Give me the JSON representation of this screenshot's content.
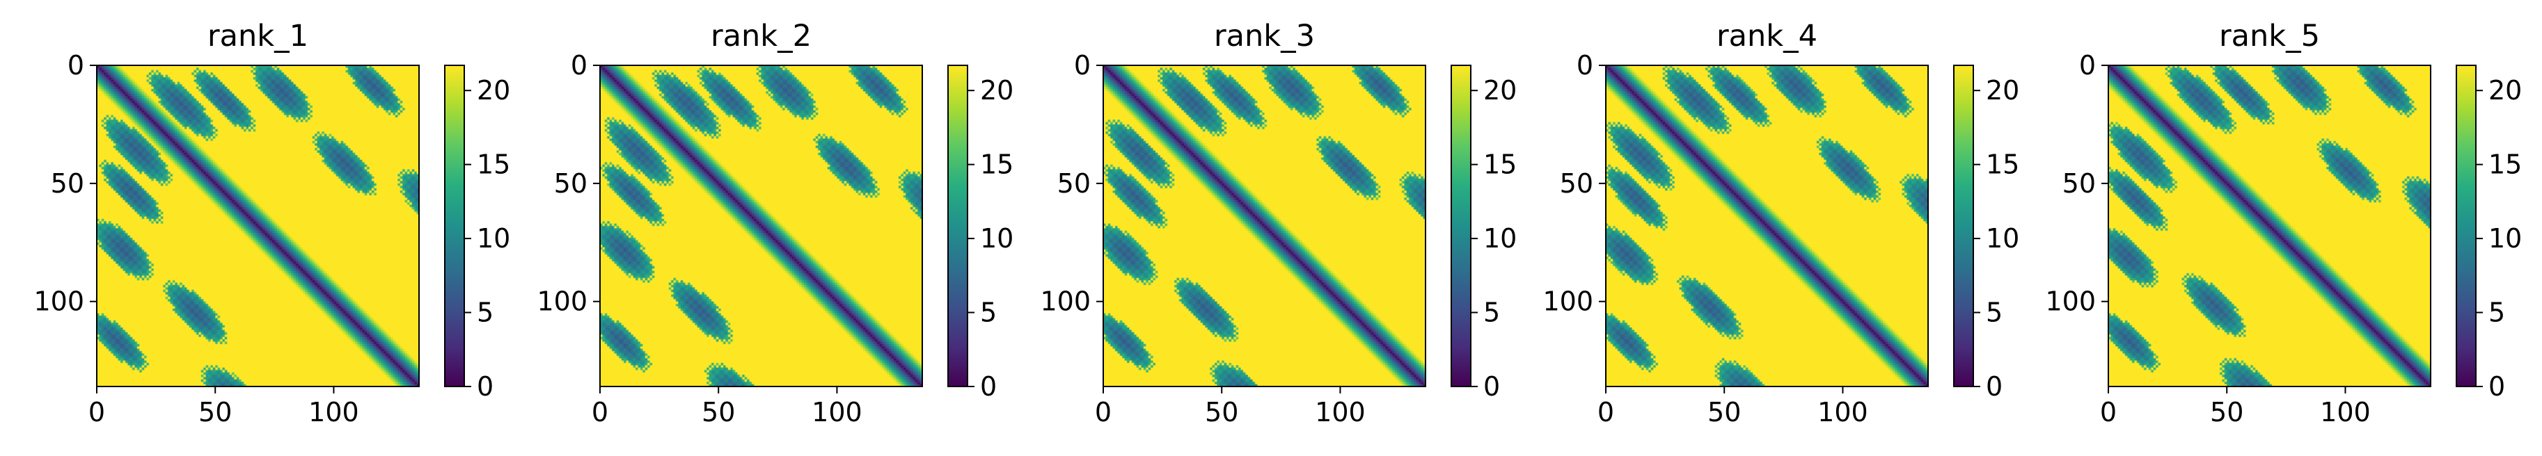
{
  "chart_data": [
    {
      "type": "heatmap",
      "title": "rank_1",
      "xlim": [
        0,
        136
      ],
      "ylim": [
        136,
        0
      ],
      "xticks": [
        "0",
        "50",
        "100"
      ],
      "yticks": [
        "0",
        "50",
        "100"
      ],
      "colorbar": {
        "range": [
          0,
          21.7
        ],
        "ticks": [
          "0",
          "5",
          "10",
          "15",
          "20"
        ],
        "colormap": "viridis"
      }
    },
    {
      "type": "heatmap",
      "title": "rank_2",
      "xlim": [
        0,
        136
      ],
      "ylim": [
        136,
        0
      ],
      "xticks": [
        "0",
        "50",
        "100"
      ],
      "yticks": [
        "0",
        "50",
        "100"
      ],
      "colorbar": {
        "range": [
          0,
          21.7
        ],
        "ticks": [
          "0",
          "5",
          "10",
          "15",
          "20"
        ],
        "colormap": "viridis"
      }
    },
    {
      "type": "heatmap",
      "title": "rank_3",
      "xlim": [
        0,
        136
      ],
      "ylim": [
        136,
        0
      ],
      "xticks": [
        "0",
        "50",
        "100"
      ],
      "yticks": [
        "0",
        "50",
        "100"
      ],
      "colorbar": {
        "range": [
          0,
          21.7
        ],
        "ticks": [
          "0",
          "5",
          "10",
          "15",
          "20"
        ],
        "colormap": "viridis"
      }
    },
    {
      "type": "heatmap",
      "title": "rank_4",
      "xlim": [
        0,
        136
      ],
      "ylim": [
        136,
        0
      ],
      "xticks": [
        "0",
        "50",
        "100"
      ],
      "yticks": [
        "0",
        "50",
        "100"
      ],
      "colorbar": {
        "range": [
          0,
          21.7
        ],
        "ticks": [
          "0",
          "5",
          "10",
          "15",
          "20"
        ],
        "colormap": "viridis"
      }
    },
    {
      "type": "heatmap",
      "title": "rank_5",
      "xlim": [
        0,
        136
      ],
      "ylim": [
        136,
        0
      ],
      "xticks": [
        "0",
        "50",
        "100"
      ],
      "yticks": [
        "0",
        "50",
        "100"
      ],
      "colorbar": {
        "range": [
          0,
          21.7
        ],
        "ticks": [
          "0",
          "5",
          "10",
          "15",
          "20"
        ],
        "colormap": "viridis"
      }
    }
  ]
}
